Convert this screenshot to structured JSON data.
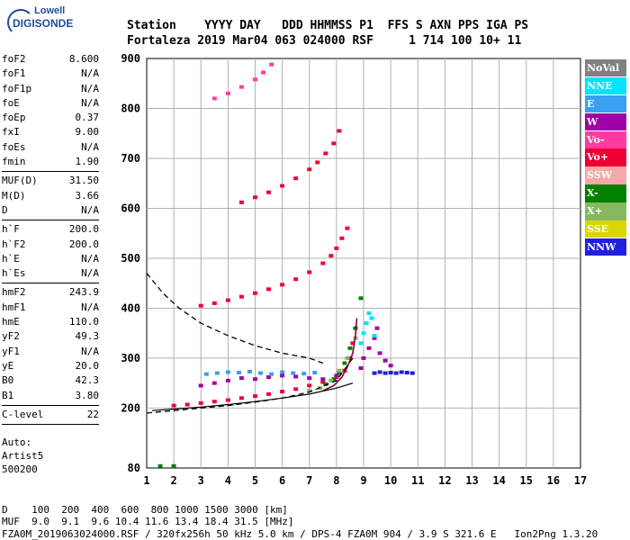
{
  "logo": {
    "top": "Lowell",
    "bottom": "DIGISONDE"
  },
  "header": {
    "row1": "Station    YYYY DAY   DDD HHMMSS P1  FFS S AXN PPS IGA PS",
    "row2": "Fortaleza 2019 Mar04 063 024000 RSF     1 714 100 10+ 11"
  },
  "params": {
    "group1": [
      {
        "name": "foF2",
        "value": "8.600"
      },
      {
        "name": "foF1",
        "value": "N/A"
      },
      {
        "name": "foF1p",
        "value": "N/A"
      },
      {
        "name": "foE",
        "value": "N/A"
      },
      {
        "name": "foEp",
        "value": "0.37"
      },
      {
        "name": "fxI",
        "value": "9.00"
      },
      {
        "name": "foEs",
        "value": "N/A"
      },
      {
        "name": "fmin",
        "value": "1.90"
      }
    ],
    "group2": [
      {
        "name": "MUF(D)",
        "value": "31.50"
      },
      {
        "name": "M(D)",
        "value": "3.66"
      },
      {
        "name": "D",
        "value": "N/A"
      }
    ],
    "group3": [
      {
        "name": "h`F",
        "value": "200.0"
      },
      {
        "name": "h`F2",
        "value": "200.0"
      },
      {
        "name": "h`E",
        "value": "N/A"
      },
      {
        "name": "h`Es",
        "value": "N/A"
      }
    ],
    "group4": [
      {
        "name": "hmF2",
        "value": "243.9"
      },
      {
        "name": "hmF1",
        "value": "N/A"
      },
      {
        "name": "hmE",
        "value": "110.0"
      },
      {
        "name": "yF2",
        "value": "49.3"
      },
      {
        "name": "yF1",
        "value": "N/A"
      },
      {
        "name": "yE",
        "value": "20.0"
      },
      {
        "name": "B0",
        "value": "42.3"
      },
      {
        "name": "B1",
        "value": "3.80"
      }
    ],
    "group5": [
      {
        "name": "C-level",
        "value": "22"
      }
    ]
  },
  "auto": {
    "line1": "Auto:",
    "line2": "Artist5",
    "line3": "500200"
  },
  "legend": [
    {
      "label": "NoVal",
      "color": "#808080"
    },
    {
      "label": "NNE",
      "color": "#00e5ff"
    },
    {
      "label": "E",
      "color": "#3aa0f0"
    },
    {
      "label": "W",
      "color": "#a000a8"
    },
    {
      "label": "Vo-",
      "color": "#ff3aa0"
    },
    {
      "label": "Vo+",
      "color": "#ee0033"
    },
    {
      "label": "SSW",
      "color": "#f4a8a8"
    },
    {
      "label": "X-",
      "color": "#008000"
    },
    {
      "label": "X+",
      "color": "#86b860"
    },
    {
      "label": "SSE",
      "color": "#d8d800"
    },
    {
      "label": "NNW",
      "color": "#2020e0"
    }
  ],
  "footer": {
    "line1": "D    100  200  400  600  800 1000 1500 3000 [km]",
    "line2": "MUF  9.0  9.1  9.6 10.4 11.6 13.4 18.4 31.5 [MHz]",
    "line3": "FZA0M_2019063024000.RSF / 320fx256h 50 kHz 5.0 km / DPS-4 FZA0M 904 / 3.9 S 321.6 E   Ion2Png 1.3.20"
  },
  "chart_data": {
    "type": "scatter",
    "title": "",
    "xlabel": "",
    "ylabel": "",
    "xlim": [
      1,
      17
    ],
    "ylim": [
      80,
      900
    ],
    "xticks": [
      1,
      2,
      3,
      4,
      5,
      6,
      7,
      8,
      9,
      10,
      11,
      12,
      13,
      14,
      15,
      16,
      17
    ],
    "yticks": [
      80,
      200,
      300,
      400,
      500,
      600,
      700,
      800,
      900
    ],
    "grid": true,
    "series": [
      {
        "color": "#ee0033",
        "x": [
          2.0,
          2.5,
          3.0,
          3.5,
          4.0,
          4.5,
          5.0,
          5.5,
          6.0,
          6.5,
          7.0,
          7.5,
          8.0,
          8.3,
          8.5,
          8.6
        ],
        "y": [
          205,
          207,
          210,
          213,
          216,
          220,
          224,
          228,
          233,
          238,
          245,
          252,
          262,
          275,
          300,
          330
        ]
      },
      {
        "color": "#ee0033",
        "x": [
          3.0,
          3.5,
          4.0,
          4.5,
          5.0,
          5.5,
          6.0,
          6.5,
          7.0,
          7.5,
          7.8,
          8.0,
          8.2,
          8.4
        ],
        "y": [
          405,
          410,
          416,
          423,
          430,
          438,
          447,
          458,
          472,
          490,
          505,
          520,
          540,
          560
        ]
      },
      {
        "color": "#ee0033",
        "x": [
          4.5,
          5.0,
          5.5,
          6.0,
          6.5,
          7.0,
          7.3,
          7.6,
          7.9,
          8.1
        ],
        "y": [
          612,
          622,
          632,
          645,
          660,
          678,
          692,
          710,
          730,
          755
        ]
      },
      {
        "color": "#ff3aa0",
        "x": [
          3.5,
          4.0,
          4.5,
          5.0,
          5.3,
          5.6
        ],
        "y": [
          820,
          830,
          843,
          858,
          872,
          888
        ]
      },
      {
        "color": "#a000a8",
        "x": [
          3.0,
          3.5,
          4.0,
          4.5,
          5.0,
          5.5,
          6.0,
          6.5,
          7.0,
          7.5,
          8.0
        ],
        "y": [
          245,
          250,
          255,
          260,
          258,
          262,
          265,
          263,
          260,
          258,
          265
        ]
      },
      {
        "color": "#3aa0f0",
        "x": [
          3.2,
          3.6,
          4.0,
          4.4,
          4.8,
          5.2,
          5.6,
          6.0,
          6.4,
          6.8,
          7.2
        ],
        "y": [
          268,
          270,
          272,
          271,
          273,
          270,
          268,
          272,
          270,
          269,
          271
        ]
      },
      {
        "color": "#008000",
        "x": [
          7.6,
          7.9,
          8.1,
          8.3,
          8.5,
          8.7,
          8.9
        ],
        "y": [
          248,
          258,
          270,
          290,
          320,
          360,
          420
        ]
      },
      {
        "color": "#86b860",
        "x": [
          7.0,
          7.4,
          7.8,
          8.1,
          8.4,
          8.7
        ],
        "y": [
          235,
          240,
          255,
          275,
          300,
          340
        ]
      },
      {
        "color": "#2020e0",
        "x": [
          9.4,
          9.6,
          9.8,
          10.0,
          10.2,
          10.4,
          10.6,
          10.8
        ],
        "y": [
          270,
          272,
          270,
          271,
          270,
          272,
          271,
          270
        ]
      },
      {
        "color": "#a000a8",
        "x": [
          8.9,
          9.0,
          9.2,
          9.4,
          9.5,
          9.6,
          9.8,
          10.0
        ],
        "y": [
          280,
          300,
          320,
          340,
          360,
          310,
          295,
          285
        ]
      },
      {
        "color": "#00e5ff",
        "x": [
          8.9,
          9.0,
          9.1,
          9.2,
          9.3,
          9.4
        ],
        "y": [
          330,
          350,
          370,
          390,
          380,
          345
        ]
      },
      {
        "color": "#008000",
        "x": [
          1.5,
          2.0
        ],
        "y": [
          84,
          84
        ]
      }
    ],
    "profile_dashed": {
      "x": [
        1.0,
        2.0,
        3.0,
        4.0,
        5.0,
        6.0,
        7.0,
        8.0,
        8.6
      ],
      "y": [
        190,
        195,
        200,
        205,
        212,
        220,
        232,
        255,
        300
      ]
    },
    "profile_dashed_upper": {
      "x": [
        1.0,
        1.6,
        2.2,
        3.0,
        4.0,
        5.0,
        6.0,
        7.0,
        7.5
      ],
      "y": [
        470,
        430,
        400,
        370,
        345,
        325,
        310,
        300,
        290
      ]
    },
    "profile_solid": {
      "x": [
        1.2,
        2.0,
        3.0,
        4.0,
        5.0,
        6.0,
        7.0,
        8.0,
        8.6
      ],
      "y": [
        195,
        198,
        202,
        207,
        213,
        220,
        228,
        240,
        250
      ]
    },
    "trace_curve": {
      "x": [
        7.5,
        7.9,
        8.2,
        8.4,
        8.6,
        8.7,
        8.75
      ],
      "y": [
        235,
        245,
        262,
        282,
        310,
        345,
        380
      ]
    }
  }
}
